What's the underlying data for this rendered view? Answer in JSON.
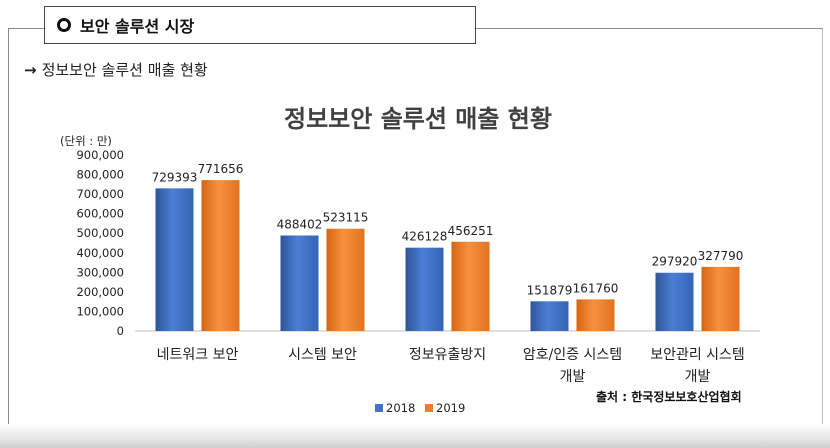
{
  "section": {
    "title": "보안 솔루션 시장"
  },
  "subheading": {
    "arrow": "→",
    "text": "정보보안 솔루션 매출 현황"
  },
  "source": "출처 : 한국정보보호산업협회",
  "colors": {
    "s2018": "#4472c4",
    "s2019": "#ed7d31"
  },
  "chart_data": {
    "type": "bar",
    "title": "정보보안 솔루션 매출 현황",
    "unit_label": "(단위 : 만)",
    "categories": [
      [
        "네트워크 보안"
      ],
      [
        "시스템 보안"
      ],
      [
        "정보유출방지"
      ],
      [
        "암호/인증 시스템",
        "개발"
      ],
      [
        "보안관리 시스템",
        "개발"
      ]
    ],
    "series": [
      {
        "name": "2018",
        "values": [
          729393,
          488402,
          426128,
          151879,
          297920
        ]
      },
      {
        "name": "2019",
        "values": [
          771656,
          523115,
          456251,
          161760,
          327790
        ]
      }
    ],
    "ylim": [
      0,
      900000
    ],
    "yticks": [
      "0",
      "100,000",
      "200,000",
      "300,000",
      "400,000",
      "500,000",
      "600,000",
      "700,000",
      "800,000",
      "900,000"
    ],
    "legend_position": "bottom",
    "grid": false
  }
}
